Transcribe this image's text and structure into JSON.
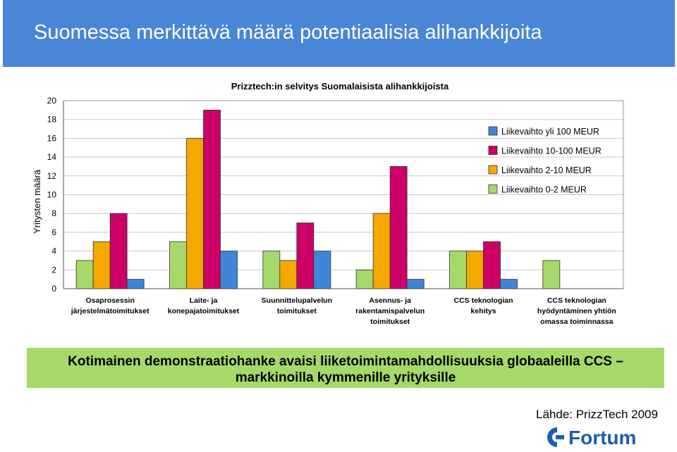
{
  "header": {
    "title": "Suomessa merkittävä määrä potentiaalisia alihankkijoita"
  },
  "chart_data": {
    "type": "bar",
    "title": "Prizztech:in selvitys Suomalaisista alihankkijoista",
    "ylabel": "Yritysten määrä",
    "xlabel": "",
    "ylim": [
      0,
      20
    ],
    "yticks": [
      0,
      2,
      4,
      6,
      8,
      10,
      12,
      14,
      16,
      18,
      20
    ],
    "grid": true,
    "legend_position": "top-right",
    "categories": [
      [
        "Osaprosessin",
        "järjestelmätoimitukset"
      ],
      [
        "Laite- ja",
        "konepajatoimitukset"
      ],
      [
        "Suunnittelupalvelun",
        "toimitukset"
      ],
      [
        "Asennus- ja",
        "rakentamispalvelun",
        "toimitukset"
      ],
      [
        "CCS teknologian",
        "kehitys"
      ],
      [
        "CCS teknologian",
        "hyödyntäminen yhtiön",
        "omassa toiminnassa"
      ]
    ],
    "series": [
      {
        "name": "Liikevaihto 0-2 MEUR",
        "color": "#a6d96a",
        "values": [
          3,
          5,
          4,
          2,
          4,
          3
        ]
      },
      {
        "name": "Liikevaihto 2-10 MEUR",
        "color": "#f5a800",
        "values": [
          5,
          16,
          3,
          8,
          4,
          0
        ]
      },
      {
        "name": "Liikevaihto 10-100 MEUR",
        "color": "#cc0066",
        "values": [
          8,
          19,
          7,
          13,
          5,
          0
        ]
      },
      {
        "name": "Liikevaihto yli 100 MEUR",
        "color": "#3f86d8",
        "values": [
          1,
          4,
          4,
          1,
          1,
          0
        ]
      }
    ],
    "legend_order": [
      "Liikevaihto yli 100 MEUR",
      "Liikevaihto 10-100 MEUR",
      "Liikevaihto 2-10 MEUR",
      "Liikevaihto 0-2 MEUR"
    ]
  },
  "highlight": {
    "line1": "Kotimainen demonstraatiohanke avaisi liiketoimintamahdollisuuksia globaaleilla CCS –",
    "line2": "markkinoilla kymmenille yrityksille"
  },
  "source": {
    "text": "Lähde: PrizzTech 2009"
  },
  "logo": {
    "text": "Fortum",
    "color": "#1a5fb4"
  }
}
